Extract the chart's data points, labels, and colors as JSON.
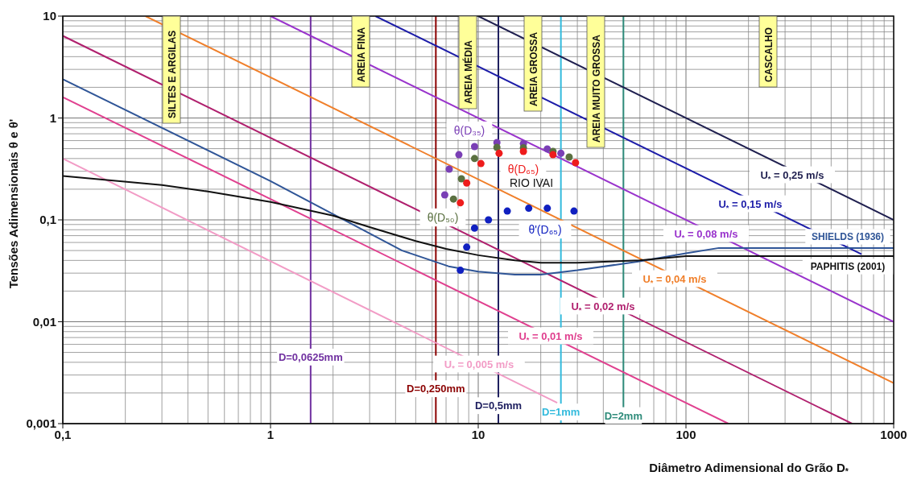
{
  "chart_data": {
    "type": "line",
    "xlabel": "Diâmetro Adimensional do Grão D$_{*}$",
    "ylabel": "Tensões Adimensionais  θ e θ'",
    "log": "xy",
    "grid": true,
    "legend": false,
    "line_style": "solid",
    "xlim": [
      0.1,
      1000
    ],
    "xticks": [
      {
        "value": 0.1,
        "label": "0,1"
      },
      1,
      10,
      100,
      1000
    ],
    "ylim": [
      0.001,
      10
    ],
    "yticks": [
      {
        "value": 0.001,
        "label": "0,001"
      },
      {
        "value": 0.01,
        "label": "0,01"
      },
      {
        "value": 0.1,
        "label": "0,1"
      },
      1,
      10
    ],
    "series": [
      {
        "name": "U$_{*}$ = 0,25 m/s",
        "color": "#1f1f4f",
        "x": [
          10,
          1000
        ],
        "values": [
          10,
          0.1
        ]
      },
      {
        "name": "U$_{*}$ = 0,15 m/s",
        "color": "#1c1ca8",
        "x": [
          3.2,
          700
        ],
        "values": [
          10,
          0.046
        ]
      },
      {
        "name": "U$_{*}$ = 0,08 m/s",
        "color": "#9933cc",
        "x": [
          1,
          1000
        ],
        "values": [
          10,
          0.01
        ]
      },
      {
        "name": "U$_{*}$ = 0,04 m/s",
        "color": "#f07f2a",
        "x": [
          0.25,
          1000
        ],
        "values": [
          10,
          0.0025
        ]
      },
      {
        "name": "U$_{*}$ = 0,02 m/s",
        "color": "#b0206e",
        "x": [
          0.1,
          630
        ],
        "values": [
          6.4,
          0.001
        ]
      },
      {
        "name": "U$_{*}$ = 0,01 m/s",
        "color": "#e0408f",
        "x": [
          0.1,
          160
        ],
        "values": [
          1.6,
          0.001
        ]
      },
      {
        "name": "U$_{*}$ = 0,005 m/s",
        "color": "#f29cc6",
        "x": [
          0.1,
          24
        ],
        "values": [
          0.4,
          0.0016
        ]
      },
      {
        "name": "SHIELDS (1936)",
        "color": "#2f5597",
        "x": [
          0.1,
          1,
          4.3,
          7.2,
          10,
          15,
          20,
          30,
          59,
          100,
          144,
          1000
        ],
        "values": [
          2.4,
          0.24,
          0.05,
          0.035,
          0.031,
          0.029,
          0.029,
          0.032,
          0.039,
          0.047,
          0.053,
          0.053
        ]
      },
      {
        "name": "PAPHITIS (2001)",
        "color": "#111111",
        "x": [
          0.1,
          0.3,
          0.5,
          1,
          2,
          3,
          5,
          7,
          10,
          15,
          20,
          30,
          60,
          100,
          1000
        ],
        "values": [
          0.27,
          0.22,
          0.19,
          0.15,
          0.11,
          0.085,
          0.062,
          0.052,
          0.045,
          0.04,
          0.038,
          0.038,
          0.04,
          0.044,
          0.044
        ]
      },
      {
        "name": "θ(D₃₅)",
        "type": "scatter",
        "marker": "circle",
        "color": "#7a3fb5",
        "x": [
          6.9,
          7.25,
          8.07,
          9.6,
          12.3,
          16.5,
          21.5,
          25
        ],
        "values": [
          0.176,
          0.315,
          0.436,
          0.524,
          0.574,
          0.56,
          0.497,
          0.45
        ]
      },
      {
        "name": "θ(D₅₀)",
        "type": "scatter",
        "marker": "circle",
        "color": "#5a7040",
        "x": [
          7.6,
          8.3,
          9.6,
          12.3,
          16.5,
          22.9,
          27.4
        ],
        "values": [
          0.16,
          0.253,
          0.4,
          0.514,
          0.51,
          0.47,
          0.414
        ]
      },
      {
        "name": "θ(D₆₅)",
        "type": "scatter",
        "marker": "circle",
        "color": "#ee1c1c",
        "x": [
          8.2,
          8.8,
          10.3,
          12.6,
          16.5,
          22.9,
          29.4
        ],
        "values": [
          0.147,
          0.23,
          0.357,
          0.45,
          0.47,
          0.436,
          0.364
        ]
      },
      {
        "name": "θ'(D₆₅)",
        "type": "scatter",
        "marker": "circle",
        "color": "#1020c0",
        "x": [
          8.2,
          8.8,
          9.6,
          11.2,
          13.8,
          17.5,
          21.5,
          28.9
        ],
        "values": [
          0.032,
          0.054,
          0.083,
          0.1,
          0.122,
          0.13,
          0.13,
          0.122
        ]
      }
    ],
    "ref_lines": [
      {
        "axis": "x",
        "value": 1.56,
        "color": "#7030a0"
      },
      {
        "axis": "x",
        "value": 6.25,
        "color": "#8b0000"
      },
      {
        "axis": "x",
        "value": 12.5,
        "color": "#1f2060"
      },
      {
        "axis": "x",
        "value": 25,
        "color": "#33bbdd"
      },
      {
        "axis": "x",
        "value": 50,
        "color": "#2e8b7a"
      }
    ],
    "annotations": [
      "SILTES E ARGILAS",
      "AREIA FINA",
      "AREIA MÉDIA",
      "AREIA GROSSA",
      "AREIA MUITO GROSSA",
      "CASCALHO",
      "RIO IVAI",
      {
        "text": "D=0,0625mm",
        "x": 1.56,
        "y": 0.0045
      },
      {
        "text": "D=0,250mm",
        "x": 6.25,
        "y": 0.0022
      },
      {
        "text": "D=0,5mm",
        "x": 12.5,
        "y": 0.0015
      },
      {
        "text": "D=1mm",
        "x": 25,
        "y": 0.0013
      },
      {
        "text": "D=2mm",
        "x": 50,
        "y": 0.0012
      }
    ]
  }
}
